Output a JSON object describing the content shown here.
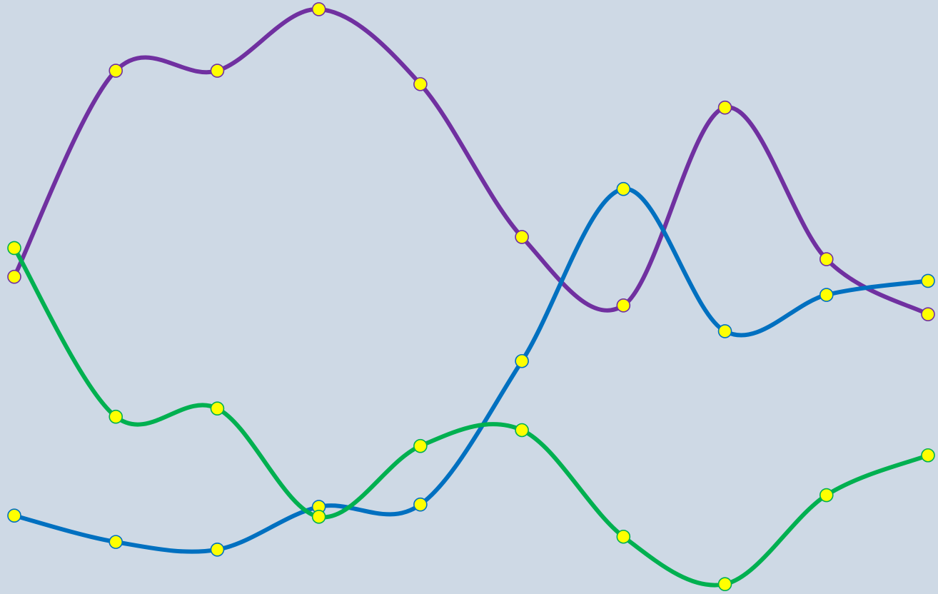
{
  "background_color": "#CED9E5",
  "marker_color": "#FFFF00",
  "chart_data": {
    "type": "line",
    "smooth": true,
    "markers": true,
    "grid": false,
    "legend": "none",
    "title": "",
    "xlabel": "",
    "ylabel": "",
    "x": [
      1,
      2,
      3,
      4,
      5,
      6,
      7,
      8,
      9,
      10
    ],
    "ylim": [
      0,
      100
    ],
    "series": [
      {
        "color": "#7030A0",
        "values": [
          53.7,
          88.9,
          88.9,
          99.4,
          86.6,
          60.5,
          48.8,
          82.6,
          56.7,
          47.3
        ]
      },
      {
        "color": "#0070C0",
        "values": [
          12.9,
          8.4,
          7.1,
          14.4,
          14.8,
          39.3,
          68.7,
          44.4,
          50.6,
          53
        ]
      },
      {
        "color": "#00B050",
        "values": [
          58.6,
          29.8,
          31.2,
          12.7,
          24.8,
          27.5,
          9.3,
          1.2,
          16.4,
          23.2
        ]
      }
    ]
  }
}
